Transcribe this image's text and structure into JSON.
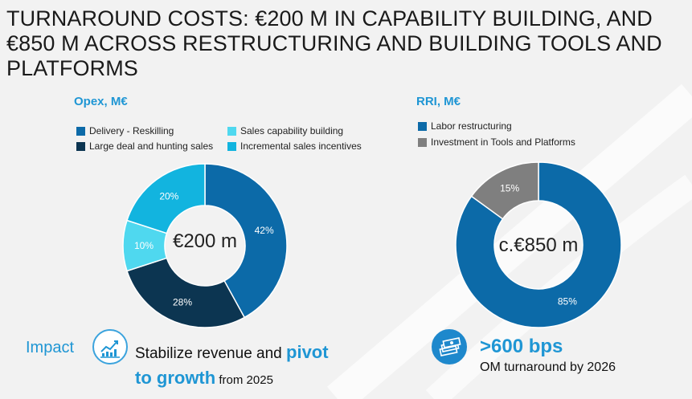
{
  "title": "TURNAROUND COSTS: €200 M IN CAPABILITY BUILDING, AND €850 M ACROSS RESTRUCTURING AND BUILDING TOOLS AND PLATFORMS",
  "colors": {
    "accent": "#1f96d4",
    "dark_blue": "#0c6aa8",
    "navy": "#0c3551",
    "light_cyan": "#4fd8ef",
    "mid_cyan": "#12b4df",
    "gray": "#7f7f7f",
    "background": "#f2f2f2"
  },
  "chart_data": [
    {
      "type": "pie",
      "title": "Opex, M€",
      "center_label": "€200 m",
      "legend": [
        "Delivery - Reskilling",
        "Sales capability building",
        "Large deal and hunting sales",
        "Incremental sales incentives"
      ],
      "slices": [
        {
          "name": "Delivery - Reskilling",
          "value": 42,
          "label": "42%",
          "color": "#0c6aa8"
        },
        {
          "name": "Large deal and hunting sales",
          "value": 28,
          "label": "28%",
          "color": "#0c3551"
        },
        {
          "name": "Sales capability building",
          "value": 10,
          "label": "10%",
          "color": "#4fd8ef"
        },
        {
          "name": "Incremental sales incentives",
          "value": 20,
          "label": "20%",
          "color": "#12b4df"
        }
      ]
    },
    {
      "type": "pie",
      "title": "RRI, M€",
      "center_label": "c.€850 m",
      "legend": [
        "Labor restructuring",
        "Investment in Tools and Platforms"
      ],
      "slices": [
        {
          "name": "Labor restructuring",
          "value": 85,
          "label": "85%",
          "color": "#0c6aa8"
        },
        {
          "name": "Investment in Tools and Platforms",
          "value": 15,
          "label": "15%",
          "color": "#7f7f7f"
        }
      ]
    }
  ],
  "impact": {
    "label": "Impact",
    "icon": "growth-chart-icon",
    "text_before": "Stabilize revenue and ",
    "highlight_1": "pivot",
    "highlight_2": "to growth",
    "text_after": " from 2025"
  },
  "om": {
    "icon": "money-stack-icon",
    "headline": ">600 bps",
    "subtext": "OM turnaround by 2026"
  }
}
